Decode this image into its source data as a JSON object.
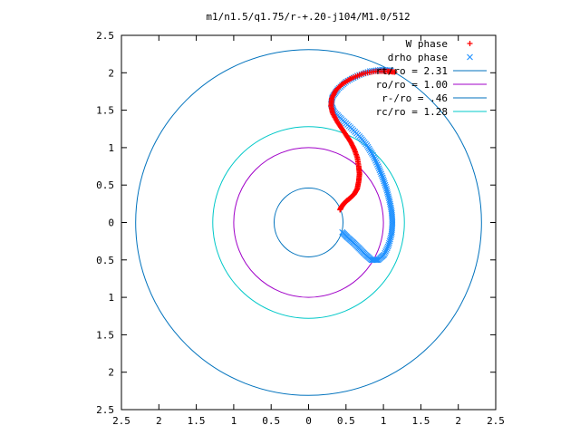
{
  "chart_data": {
    "type": "scatter",
    "title": "m1/n1.5/q1.75/r-+.20-j104/M1.0/512",
    "xlim": [
      -2.5,
      2.5
    ],
    "ylim": [
      -2.5,
      2.5
    ],
    "x_ticks": [
      -2.5,
      -2,
      -1.5,
      -1,
      -0.5,
      0,
      0.5,
      1,
      1.5,
      2,
      2.5
    ],
    "y_ticks": [
      -2.5,
      -2,
      -1.5,
      -1,
      -0.5,
      0,
      0.5,
      1,
      1.5,
      2,
      2.5
    ],
    "x_tick_labels": [
      "2.5",
      "2",
      "1.5",
      "1",
      "0.5",
      "0",
      "0.5",
      "1",
      "1.5",
      "2",
      "2.5"
    ],
    "y_tick_labels": [
      "2.5",
      "2",
      "1.5",
      "1",
      "0.5",
      "0",
      "0.5",
      "1",
      "1.5",
      "2",
      "2.5"
    ],
    "grid": false,
    "legend_position": "top-right",
    "series": [
      {
        "name": "W phase",
        "kind": "points",
        "marker": "plus",
        "color": "#ff0000",
        "points": [
          [
            0.42,
            0.17
          ],
          [
            0.44,
            0.21
          ],
          [
            0.47,
            0.25
          ],
          [
            0.51,
            0.29
          ],
          [
            0.56,
            0.33
          ],
          [
            0.61,
            0.38
          ],
          [
            0.65,
            0.45
          ],
          [
            0.67,
            0.55
          ],
          [
            0.68,
            0.65
          ],
          [
            0.67,
            0.75
          ],
          [
            0.65,
            0.87
          ],
          [
            0.61,
            0.98
          ],
          [
            0.56,
            1.08
          ],
          [
            0.5,
            1.17
          ],
          [
            0.44,
            1.26
          ],
          [
            0.38,
            1.35
          ],
          [
            0.32,
            1.46
          ],
          [
            0.3,
            1.56
          ],
          [
            0.31,
            1.66
          ],
          [
            0.36,
            1.76
          ],
          [
            0.45,
            1.85
          ],
          [
            0.58,
            1.93
          ],
          [
            0.73,
            1.99
          ],
          [
            0.9,
            2.02
          ],
          [
            1.05,
            2.02
          ],
          [
            1.15,
            2.01
          ]
        ]
      },
      {
        "name": "drho phase",
        "kind": "points",
        "marker": "cross",
        "color": "#1e90ff",
        "points": [
          [
            0.45,
            -0.13
          ],
          [
            0.52,
            -0.2
          ],
          [
            0.6,
            -0.27
          ],
          [
            0.68,
            -0.35
          ],
          [
            0.76,
            -0.43
          ],
          [
            0.84,
            -0.5
          ],
          [
            0.93,
            -0.5
          ],
          [
            1.01,
            -0.43
          ],
          [
            1.07,
            -0.3
          ],
          [
            1.11,
            -0.15
          ],
          [
            1.12,
            0.0
          ],
          [
            1.11,
            0.15
          ],
          [
            1.08,
            0.3
          ],
          [
            1.04,
            0.45
          ],
          [
            0.99,
            0.6
          ],
          [
            0.93,
            0.75
          ],
          [
            0.86,
            0.9
          ],
          [
            0.78,
            1.03
          ],
          [
            0.68,
            1.15
          ],
          [
            0.56,
            1.27
          ],
          [
            0.44,
            1.38
          ],
          [
            0.34,
            1.48
          ],
          [
            0.3,
            1.58
          ],
          [
            0.32,
            1.68
          ],
          [
            0.39,
            1.78
          ],
          [
            0.5,
            1.88
          ],
          [
            0.65,
            1.96
          ],
          [
            0.82,
            2.02
          ],
          [
            0.98,
            2.04
          ],
          [
            1.1,
            2.03
          ]
        ]
      },
      {
        "name": "rt/ro = 2.31",
        "kind": "circle",
        "radius": 2.31,
        "color": "#0072bd"
      },
      {
        "name": "ro/ro = 1.00",
        "kind": "circle",
        "radius": 1.0,
        "color": "#a000c8"
      },
      {
        "name": "r-/ro = .46",
        "kind": "circle",
        "radius": 0.46,
        "color": "#0072bd"
      },
      {
        "name": "rc/ro = 1.28",
        "kind": "circle",
        "radius": 1.28,
        "color": "#00c8c8"
      }
    ]
  }
}
